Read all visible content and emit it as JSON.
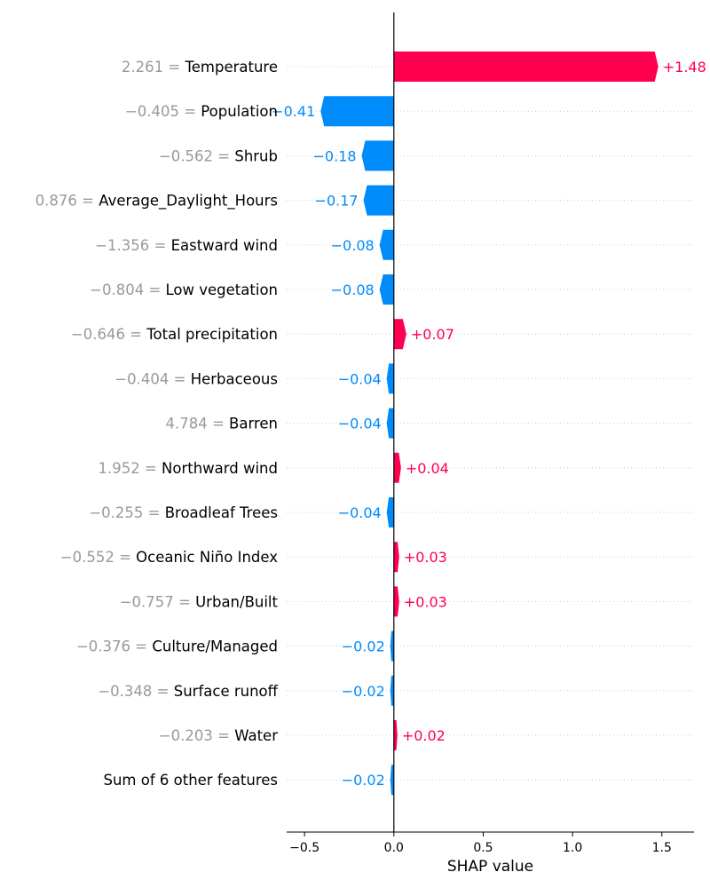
{
  "chart_data": {
    "type": "bar",
    "orientation": "horizontal",
    "xlabel": "SHAP value",
    "xlim": [
      -0.6,
      1.68
    ],
    "xticks": [
      {
        "value": -0.5,
        "label": "−0.5"
      },
      {
        "value": 0.0,
        "label": "0.0"
      },
      {
        "value": 0.5,
        "label": "0.5"
      },
      {
        "value": 1.0,
        "label": "1.0"
      },
      {
        "value": 1.5,
        "label": "1.5"
      }
    ],
    "grid": "dotted horizontal guide per row",
    "colors": {
      "positive": "#ff0051",
      "negative": "#008bfb",
      "feature_value": "#999999",
      "feature_name": "#000000",
      "axis": "#000000",
      "guide": "#cccccc"
    },
    "rows": [
      {
        "feature_value": "2.261 = ",
        "feature": "Temperature",
        "value": 1.48,
        "label": "+1.48"
      },
      {
        "feature_value": "−0.405 = ",
        "feature": "Population",
        "value": -0.41,
        "label": "−0.41"
      },
      {
        "feature_value": "−0.562 = ",
        "feature": "Shrub",
        "value": -0.18,
        "label": "−0.18"
      },
      {
        "feature_value": "0.876 = ",
        "feature": "Average_Daylight_Hours",
        "value": -0.17,
        "label": "−0.17"
      },
      {
        "feature_value": "−1.356 = ",
        "feature": "Eastward wind",
        "value": -0.08,
        "label": "−0.08"
      },
      {
        "feature_value": "−0.804 = ",
        "feature": "Low vegetation",
        "value": -0.08,
        "label": "−0.08"
      },
      {
        "feature_value": "−0.646 = ",
        "feature": "Total precipitation",
        "value": 0.07,
        "label": "+0.07"
      },
      {
        "feature_value": "−0.404 = ",
        "feature": "Herbaceous",
        "value": -0.04,
        "label": "−0.04"
      },
      {
        "feature_value": "4.784 = ",
        "feature": "Barren",
        "value": -0.04,
        "label": "−0.04"
      },
      {
        "feature_value": "1.952 = ",
        "feature": "Northward wind",
        "value": 0.04,
        "label": "+0.04"
      },
      {
        "feature_value": "−0.255 = ",
        "feature": "Broadleaf Trees",
        "value": -0.04,
        "label": "−0.04"
      },
      {
        "feature_value": "−0.552 = ",
        "feature": "Oceanic Niño Index",
        "value": 0.03,
        "label": "+0.03"
      },
      {
        "feature_value": "−0.757 = ",
        "feature": "Urban/Built",
        "value": 0.03,
        "label": "+0.03"
      },
      {
        "feature_value": "−0.376 = ",
        "feature": "Culture/Managed",
        "value": -0.02,
        "label": "−0.02"
      },
      {
        "feature_value": "−0.348 = ",
        "feature": "Surface runoff",
        "value": -0.02,
        "label": "−0.02"
      },
      {
        "feature_value": "−0.203 = ",
        "feature": "Water",
        "value": 0.02,
        "label": "+0.02"
      },
      {
        "feature_value": "",
        "feature": "Sum of 6 other features",
        "value": -0.02,
        "label": "−0.02"
      }
    ]
  }
}
